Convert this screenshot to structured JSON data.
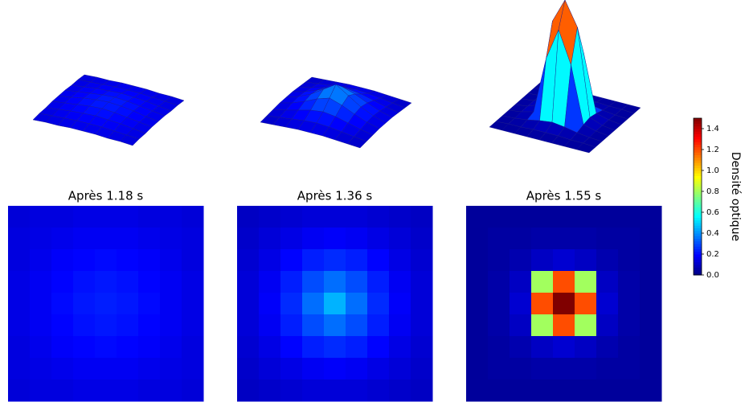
{
  "chart_data": [
    {
      "type": "heatmap",
      "title": "Après 1.18 s",
      "values": [
        [
          0.13,
          0.14,
          0.14,
          0.15,
          0.15,
          0.15,
          0.14,
          0.14,
          0.13
        ],
        [
          0.14,
          0.15,
          0.16,
          0.17,
          0.17,
          0.17,
          0.16,
          0.15,
          0.14
        ],
        [
          0.14,
          0.16,
          0.18,
          0.19,
          0.2,
          0.19,
          0.18,
          0.16,
          0.14
        ],
        [
          0.15,
          0.17,
          0.19,
          0.21,
          0.22,
          0.21,
          0.19,
          0.17,
          0.15
        ],
        [
          0.15,
          0.17,
          0.2,
          0.22,
          0.23,
          0.22,
          0.2,
          0.17,
          0.15
        ],
        [
          0.15,
          0.17,
          0.19,
          0.21,
          0.22,
          0.21,
          0.19,
          0.17,
          0.15
        ],
        [
          0.14,
          0.16,
          0.18,
          0.19,
          0.2,
          0.19,
          0.18,
          0.16,
          0.14
        ],
        [
          0.14,
          0.15,
          0.16,
          0.17,
          0.17,
          0.17,
          0.16,
          0.15,
          0.14
        ],
        [
          0.13,
          0.14,
          0.14,
          0.15,
          0.15,
          0.15,
          0.14,
          0.14,
          0.13
        ]
      ]
    },
    {
      "type": "heatmap",
      "title": "Après 1.36 s",
      "values": [
        [
          0.1,
          0.11,
          0.12,
          0.13,
          0.13,
          0.13,
          0.12,
          0.11,
          0.1
        ],
        [
          0.11,
          0.13,
          0.15,
          0.17,
          0.18,
          0.17,
          0.15,
          0.13,
          0.11
        ],
        [
          0.12,
          0.15,
          0.19,
          0.23,
          0.25,
          0.23,
          0.19,
          0.15,
          0.12
        ],
        [
          0.13,
          0.17,
          0.23,
          0.3,
          0.35,
          0.3,
          0.23,
          0.17,
          0.13
        ],
        [
          0.13,
          0.18,
          0.25,
          0.35,
          0.45,
          0.35,
          0.25,
          0.18,
          0.13
        ],
        [
          0.13,
          0.17,
          0.23,
          0.3,
          0.35,
          0.3,
          0.23,
          0.17,
          0.13
        ],
        [
          0.12,
          0.15,
          0.19,
          0.23,
          0.25,
          0.23,
          0.19,
          0.15,
          0.12
        ],
        [
          0.11,
          0.13,
          0.15,
          0.17,
          0.18,
          0.17,
          0.15,
          0.13,
          0.11
        ],
        [
          0.1,
          0.11,
          0.12,
          0.13,
          0.13,
          0.13,
          0.12,
          0.11,
          0.1
        ]
      ]
    },
    {
      "type": "heatmap",
      "title": "Après 1.55 s",
      "values": [
        [
          0.04,
          0.04,
          0.04,
          0.04,
          0.04,
          0.04,
          0.04,
          0.04,
          0.04
        ],
        [
          0.04,
          0.05,
          0.05,
          0.06,
          0.06,
          0.06,
          0.05,
          0.05,
          0.04
        ],
        [
          0.04,
          0.05,
          0.07,
          0.1,
          0.12,
          0.1,
          0.07,
          0.05,
          0.04
        ],
        [
          0.04,
          0.06,
          0.1,
          0.8,
          1.2,
          0.8,
          0.1,
          0.06,
          0.04
        ],
        [
          0.04,
          0.06,
          0.12,
          1.2,
          1.5,
          1.2,
          0.12,
          0.06,
          0.04
        ],
        [
          0.04,
          0.06,
          0.1,
          0.8,
          1.2,
          0.8,
          0.1,
          0.06,
          0.04
        ],
        [
          0.04,
          0.05,
          0.07,
          0.1,
          0.12,
          0.1,
          0.07,
          0.05,
          0.04
        ],
        [
          0.04,
          0.05,
          0.05,
          0.06,
          0.06,
          0.06,
          0.05,
          0.05,
          0.04
        ],
        [
          0.04,
          0.04,
          0.04,
          0.04,
          0.04,
          0.04,
          0.04,
          0.04,
          0.04
        ]
      ]
    }
  ],
  "colorbar": {
    "label": "Densité optique",
    "zlim": [
      0,
      1.5
    ],
    "colormap": "jet",
    "ticks": [
      {
        "value": 0,
        "label": "0.0"
      },
      0.2,
      0.4,
      0.6,
      0.8,
      {
        "value": 1,
        "label": "1.0"
      },
      1.2,
      1.4
    ]
  }
}
